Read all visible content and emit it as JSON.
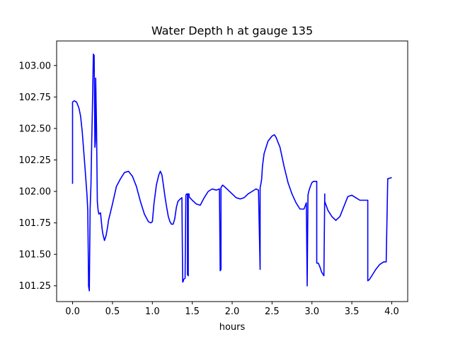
{
  "chart_data": {
    "type": "line",
    "title": "Water Depth h at gauge 135",
    "xlabel": "hours",
    "ylabel": "",
    "xlim": [
      -0.2,
      4.2
    ],
    "ylim": [
      101.125,
      103.195
    ],
    "xticks": [
      0.0,
      0.5,
      1.0,
      1.5,
      2.0,
      2.5,
      3.0,
      3.5,
      4.0
    ],
    "xtick_labels": [
      "0.0",
      "0.5",
      "1.0",
      "1.5",
      "2.0",
      "2.5",
      "3.0",
      "3.5",
      "4.0"
    ],
    "yticks": [
      101.25,
      101.5,
      101.75,
      102.0,
      102.25,
      102.5,
      102.75,
      103.0
    ],
    "ytick_labels": [
      "101.25",
      "101.50",
      "101.75",
      "102.00",
      "102.25",
      "102.50",
      "102.75",
      "103.00"
    ],
    "grid": false,
    "series": [
      {
        "color": "#0000ff",
        "x": [
          0.0,
          0.0,
          0.02,
          0.05,
          0.08,
          0.1,
          0.12,
          0.14,
          0.16,
          0.18,
          0.19,
          0.2,
          0.2,
          0.21,
          0.22,
          0.22,
          0.23,
          0.24,
          0.25,
          0.26,
          0.27,
          0.28,
          0.285,
          0.29,
          0.3,
          0.31,
          0.32,
          0.33,
          0.35,
          0.37,
          0.38,
          0.4,
          0.42,
          0.44,
          0.45,
          0.47,
          0.5,
          0.55,
          0.6,
          0.65,
          0.7,
          0.75,
          0.8,
          0.85,
          0.9,
          0.95,
          0.98,
          1.0,
          1.02,
          1.05,
          1.08,
          1.1,
          1.12,
          1.14,
          1.16,
          1.18,
          1.2,
          1.22,
          1.24,
          1.26,
          1.28,
          1.3,
          1.32,
          1.35,
          1.37,
          1.38,
          1.39,
          1.39,
          1.41,
          1.42,
          1.43,
          1.44,
          1.44,
          1.45,
          1.45,
          1.46,
          1.46,
          1.47,
          1.5,
          1.55,
          1.6,
          1.65,
          1.7,
          1.75,
          1.8,
          1.84,
          1.85,
          1.86,
          1.86,
          1.87,
          1.88,
          1.88,
          1.9,
          1.95,
          2.0,
          2.05,
          2.1,
          2.15,
          2.2,
          2.25,
          2.3,
          2.33,
          2.35,
          2.35,
          2.36,
          2.37,
          2.38,
          2.4,
          2.45,
          2.5,
          2.53,
          2.55,
          2.6,
          2.65,
          2.7,
          2.75,
          2.8,
          2.85,
          2.9,
          2.93,
          2.94,
          2.94,
          2.95,
          2.95,
          2.96,
          2.98,
          3.0,
          3.02,
          3.05,
          3.06,
          3.06,
          3.08,
          3.1,
          3.12,
          3.15,
          3.16,
          3.16,
          3.2,
          3.25,
          3.3,
          3.35,
          3.4,
          3.45,
          3.5,
          3.55,
          3.6,
          3.65,
          3.7,
          3.7,
          3.72,
          3.75,
          3.8,
          3.85,
          3.9,
          3.93,
          3.93,
          3.95,
          4.0
        ],
        "y": [
          102.06,
          102.71,
          102.72,
          102.71,
          102.66,
          102.6,
          102.48,
          102.32,
          102.15,
          101.98,
          101.85,
          101.3,
          101.25,
          101.21,
          101.85,
          101.86,
          102.05,
          102.4,
          102.7,
          103.09,
          103.08,
          102.35,
          102.4,
          102.9,
          102.5,
          101.92,
          101.85,
          101.82,
          101.83,
          101.7,
          101.66,
          101.61,
          101.65,
          101.72,
          101.77,
          101.82,
          101.9,
          102.04,
          102.1,
          102.15,
          102.16,
          102.12,
          102.04,
          101.92,
          101.82,
          101.76,
          101.75,
          101.76,
          101.9,
          102.05,
          102.13,
          102.16,
          102.13,
          102.04,
          101.95,
          101.87,
          101.8,
          101.76,
          101.74,
          101.74,
          101.78,
          101.87,
          101.92,
          101.94,
          101.95,
          101.28,
          101.29,
          101.3,
          101.31,
          101.97,
          101.98,
          101.98,
          101.34,
          101.33,
          101.98,
          101.98,
          101.96,
          101.95,
          101.93,
          101.9,
          101.89,
          101.95,
          102.0,
          102.02,
          102.01,
          102.02,
          101.37,
          101.38,
          102.03,
          102.04,
          102.05,
          102.05,
          102.04,
          102.01,
          101.98,
          101.95,
          101.94,
          101.95,
          101.98,
          102.0,
          102.02,
          102.01,
          101.38,
          102.03,
          102.06,
          102.1,
          102.2,
          102.3,
          102.4,
          102.44,
          102.45,
          102.43,
          102.35,
          102.2,
          102.07,
          101.98,
          101.91,
          101.86,
          101.86,
          101.91,
          101.25,
          101.26,
          101.95,
          101.97,
          102.0,
          102.04,
          102.07,
          102.08,
          102.08,
          102.08,
          101.43,
          101.43,
          101.4,
          101.36,
          101.33,
          101.98,
          101.92,
          101.85,
          101.8,
          101.77,
          101.8,
          101.88,
          101.96,
          101.97,
          101.95,
          101.93,
          101.93,
          101.93,
          101.29,
          101.3,
          101.33,
          101.38,
          101.42,
          101.44,
          101.44,
          101.44,
          102.1,
          102.11
        ]
      }
    ]
  }
}
